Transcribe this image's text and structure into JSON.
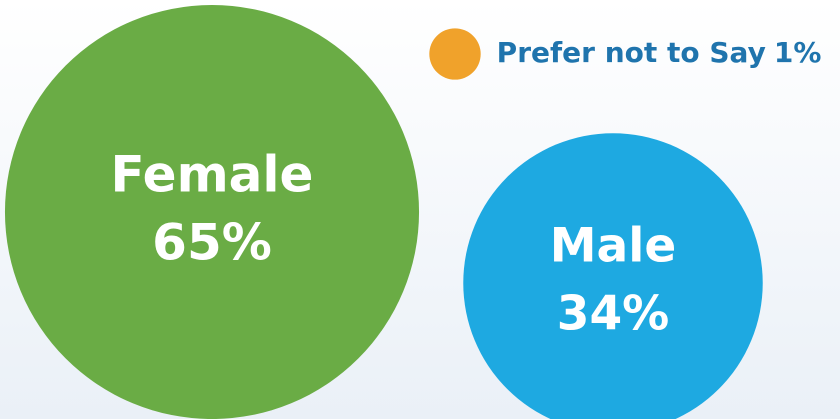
{
  "chart_data": {
    "type": "bubble",
    "categories": [
      "Female",
      "Male",
      "Prefer not to Say"
    ],
    "values": [
      65,
      34,
      1
    ],
    "value_labels": [
      "65%",
      "34%",
      "1%"
    ],
    "colors": [
      "#6aac45",
      "#1ea9e1",
      "#f0a22b"
    ]
  }
}
